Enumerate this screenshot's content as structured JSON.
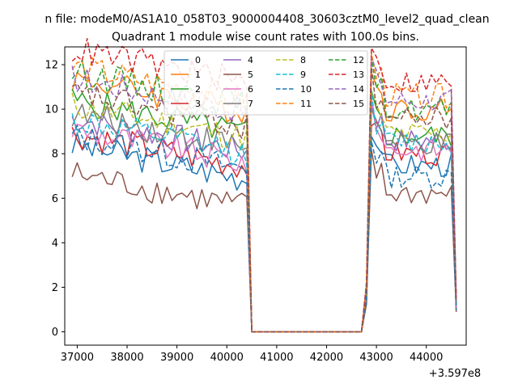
{
  "chart_data": {
    "type": "line",
    "suptitle": "n file: modeM0/AS1A10_058T03_9000004408_30603cztM0_level2_quad_clean",
    "title": "Quadrant 1 module wise count rates with 100.0s bins.",
    "xlabel": "",
    "ylabel": "",
    "x_offset_label": "+3.597e8",
    "xlim": [
      36750,
      44800
    ],
    "ylim": [
      -0.6,
      12.8
    ],
    "xticks": [
      37000,
      38000,
      39000,
      40000,
      41000,
      42000,
      43000,
      44000
    ],
    "xtick_labels": [
      "37000",
      "38000",
      "39000",
      "40000",
      "41000",
      "42000",
      "43000",
      "44000"
    ],
    "yticks": [
      0,
      2,
      4,
      6,
      8,
      10,
      12
    ],
    "ytick_labels": [
      "0",
      "2",
      "4",
      "6",
      "8",
      "10",
      "12"
    ],
    "grid": false,
    "legend_position": "upper-center",
    "segments": {
      "seg1_x_start": 36900,
      "seg1_x_end": 40400,
      "drop_x": 40500,
      "gap_x_end": 42700,
      "rise_x": 42800,
      "seg2_x_start": 42900,
      "seg2_x_end": 44500,
      "end_x": 44600
    },
    "series": [
      {
        "name": "0",
        "style": "solid",
        "color": "#1f77b4",
        "seg1_level": 7.2,
        "seg2_level": 7.5,
        "end_value": 0.9
      },
      {
        "name": "1",
        "style": "solid",
        "color": "#ff7f0e",
        "seg1_level": 10.2,
        "seg2_level": 10.0,
        "end_value": 1.4
      },
      {
        "name": "2",
        "style": "solid",
        "color": "#2ca02c",
        "seg1_level": 9.2,
        "seg2_level": 8.8,
        "end_value": 1.3
      },
      {
        "name": "3",
        "style": "solid",
        "color": "#d62728",
        "seg1_level": 7.7,
        "seg2_level": 8.0,
        "end_value": 1.1
      },
      {
        "name": "4",
        "style": "solid",
        "color": "#9467bd",
        "seg1_level": 8.4,
        "seg2_level": 8.6,
        "end_value": 1.2
      },
      {
        "name": "5",
        "style": "solid",
        "color": "#8c564b",
        "seg1_level": 5.9,
        "seg2_level": 6.2,
        "end_value": 0.9
      },
      {
        "name": "6",
        "style": "solid",
        "color": "#e377c2",
        "seg1_level": 7.9,
        "seg2_level": 8.2,
        "end_value": 1.1
      },
      {
        "name": "7",
        "style": "solid",
        "color": "#7f7f7f",
        "seg1_level": 8.6,
        "seg2_level": 8.4,
        "end_value": 1.2
      },
      {
        "name": "8",
        "style": "dashed",
        "color": "#bcbd22",
        "seg1_level": 9.0,
        "seg2_level": 8.9,
        "end_value": 1.3
      },
      {
        "name": "9",
        "style": "dashed",
        "color": "#17becf",
        "seg1_level": 8.3,
        "seg2_level": 8.5,
        "end_value": 1.2
      },
      {
        "name": "10",
        "style": "dashed",
        "color": "#1f77b4",
        "seg1_level": 7.6,
        "seg2_level": 7.0,
        "end_value": 1.0
      },
      {
        "name": "11",
        "style": "dashed",
        "color": "#ff7f0e",
        "seg1_level": 10.7,
        "seg2_level": 10.6,
        "end_value": 1.5
      },
      {
        "name": "12",
        "style": "dashed",
        "color": "#2ca02c",
        "seg1_level": 10.5,
        "seg2_level": 10.0,
        "end_value": 1.4
      },
      {
        "name": "13",
        "style": "dashed",
        "color": "#d62728",
        "seg1_level": 11.5,
        "seg2_level": 11.2,
        "end_value": 1.6
      },
      {
        "name": "14",
        "style": "dashed",
        "color": "#9467bd",
        "seg1_level": 10.2,
        "seg2_level": 10.4,
        "end_value": 1.4
      },
      {
        "name": "15",
        "style": "dashed",
        "color": "#8c564b",
        "seg1_level": 9.5,
        "seg2_level": 9.6,
        "end_value": 1.3
      }
    ]
  }
}
